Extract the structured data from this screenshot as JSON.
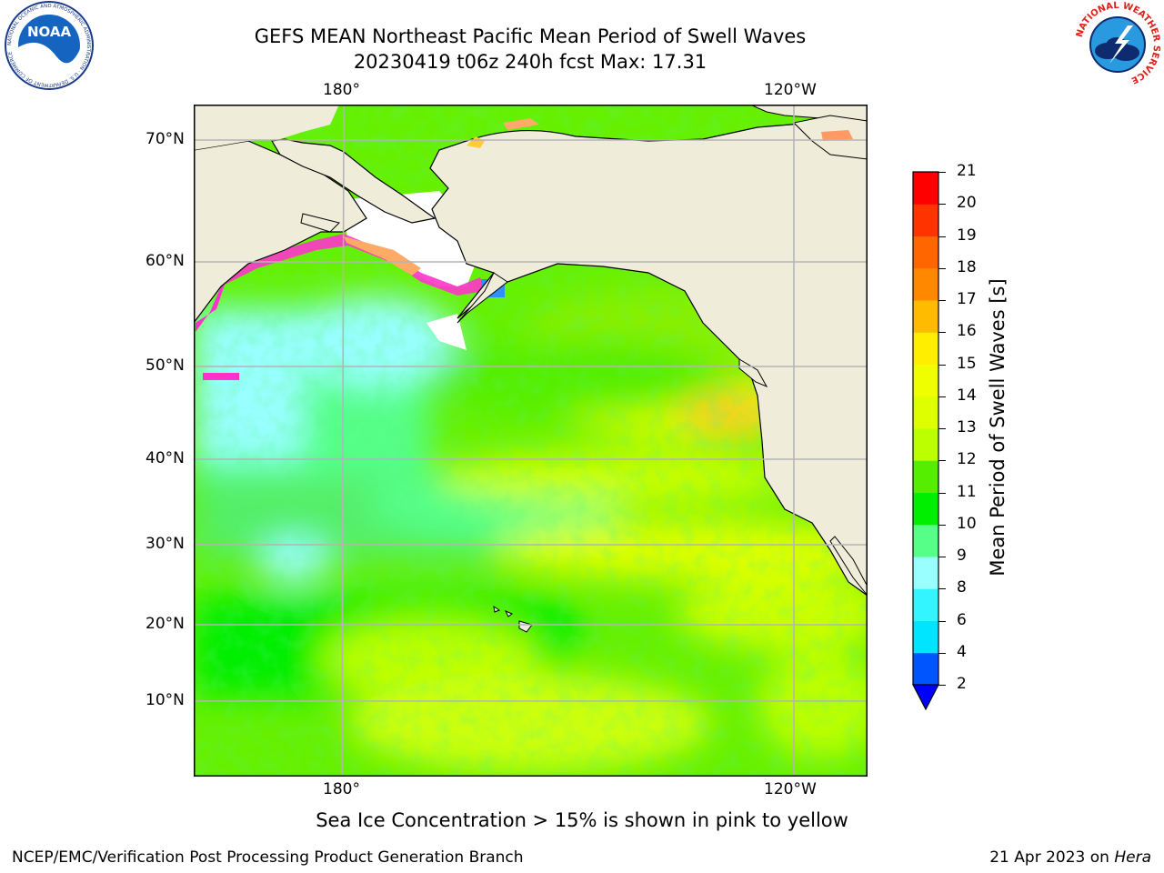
{
  "header": {
    "title_line1": "GEFS MEAN Northeast Pacific Mean Period of Swell Waves",
    "title_line2": "20230419 t06z 240h fcst   Max: 17.31"
  },
  "logos": {
    "noaa_text": "NOAA",
    "noaa_ring_text": "NATIONAL OCEANIC AND ATMOSPHERIC ADMINISTRATION · U.S. DEPARTMENT OF COMMERCE",
    "nws_ring_text": "NATIONAL WEATHER SERVICE"
  },
  "map": {
    "region": "Northeast Pacific",
    "lon_ticks_top": [
      "180°",
      "120°W"
    ],
    "lon_ticks_bottom": [
      "180°",
      "120°W"
    ],
    "lat_ticks": [
      "70°N",
      "60°N",
      "50°N",
      "40°N",
      "30°N",
      "20°N",
      "10°N"
    ],
    "colors": {
      "land": "#efedda",
      "sea_ice": "#ffffff",
      "grid": "#b4b4b4"
    }
  },
  "colorbar": {
    "title": "Mean Period of Swell Waves [s]",
    "levels": [
      "2",
      "4",
      "6",
      "8",
      "9",
      "10",
      "11",
      "12",
      "13",
      "14",
      "15",
      "16",
      "17",
      "18",
      "19",
      "20",
      "21"
    ],
    "colors": [
      "#0055ff",
      "#00e5ff",
      "#33f5ff",
      "#99ffff",
      "#55ff88",
      "#00ee00",
      "#55ee00",
      "#bbff00",
      "#ddff00",
      "#f0ff00",
      "#ffee00",
      "#ffbb00",
      "#ff8800",
      "#ff6600",
      "#ff3300",
      "#ff0000"
    ],
    "under_color": "#0000ff"
  },
  "notes": {
    "ice_note": "Sea Ice Concentration > 15% is shown in pink to yellow"
  },
  "footer": {
    "left": "NCEP/EMC/Verification Post Processing Product Generation Branch",
    "date": "21 Apr 2023 on ",
    "host": "Hera"
  }
}
